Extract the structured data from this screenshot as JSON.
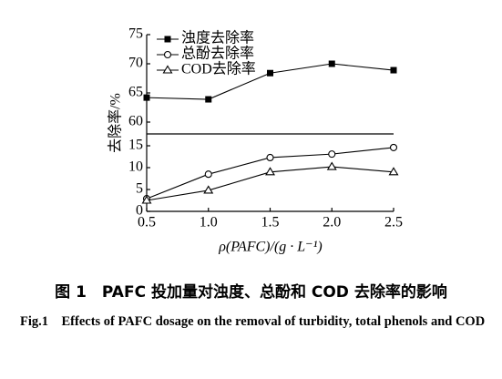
{
  "chart_data": {
    "type": "line",
    "x_label": "ρ(PAFC)/(g · L⁻¹)",
    "y_label": "去除率/%",
    "x": [
      0.5,
      1.0,
      1.5,
      2.0,
      2.5
    ],
    "series": [
      {
        "name": "浊度去除率",
        "color": "#000000",
        "marker": "square",
        "values": [
          64.2,
          63.9,
          68.4,
          70.0,
          68.9
        ]
      },
      {
        "name": "总酚去除率",
        "color": "#000000",
        "marker": "circle",
        "values": [
          2.9,
          8.5,
          12.3,
          13.1,
          14.6
        ]
      },
      {
        "name": "COD去除率",
        "color": "#000000",
        "marker": "triangle",
        "values": [
          2.5,
          4.8,
          9.0,
          10.2,
          9.0
        ]
      }
    ],
    "xlim": [
      0.5,
      2.5
    ],
    "xticks": [
      0.5,
      {
        "value": 1,
        "label": "1.0"
      },
      1.5,
      {
        "value": 2,
        "label": "2.0"
      },
      2.5
    ],
    "ylim": [
      0,
      75
    ],
    "ybreak": [
      15,
      60
    ],
    "yticks": [
      0,
      5,
      10,
      15,
      60,
      65,
      70,
      75
    ],
    "legend": "upper left",
    "caption_zh": "图 1　PAFC 投加量对浊度、总酚和 COD 去除率的影响",
    "caption_en": "Fig.1　Effects of PAFC dosage on the removal of turbidity, total phenols and COD"
  }
}
